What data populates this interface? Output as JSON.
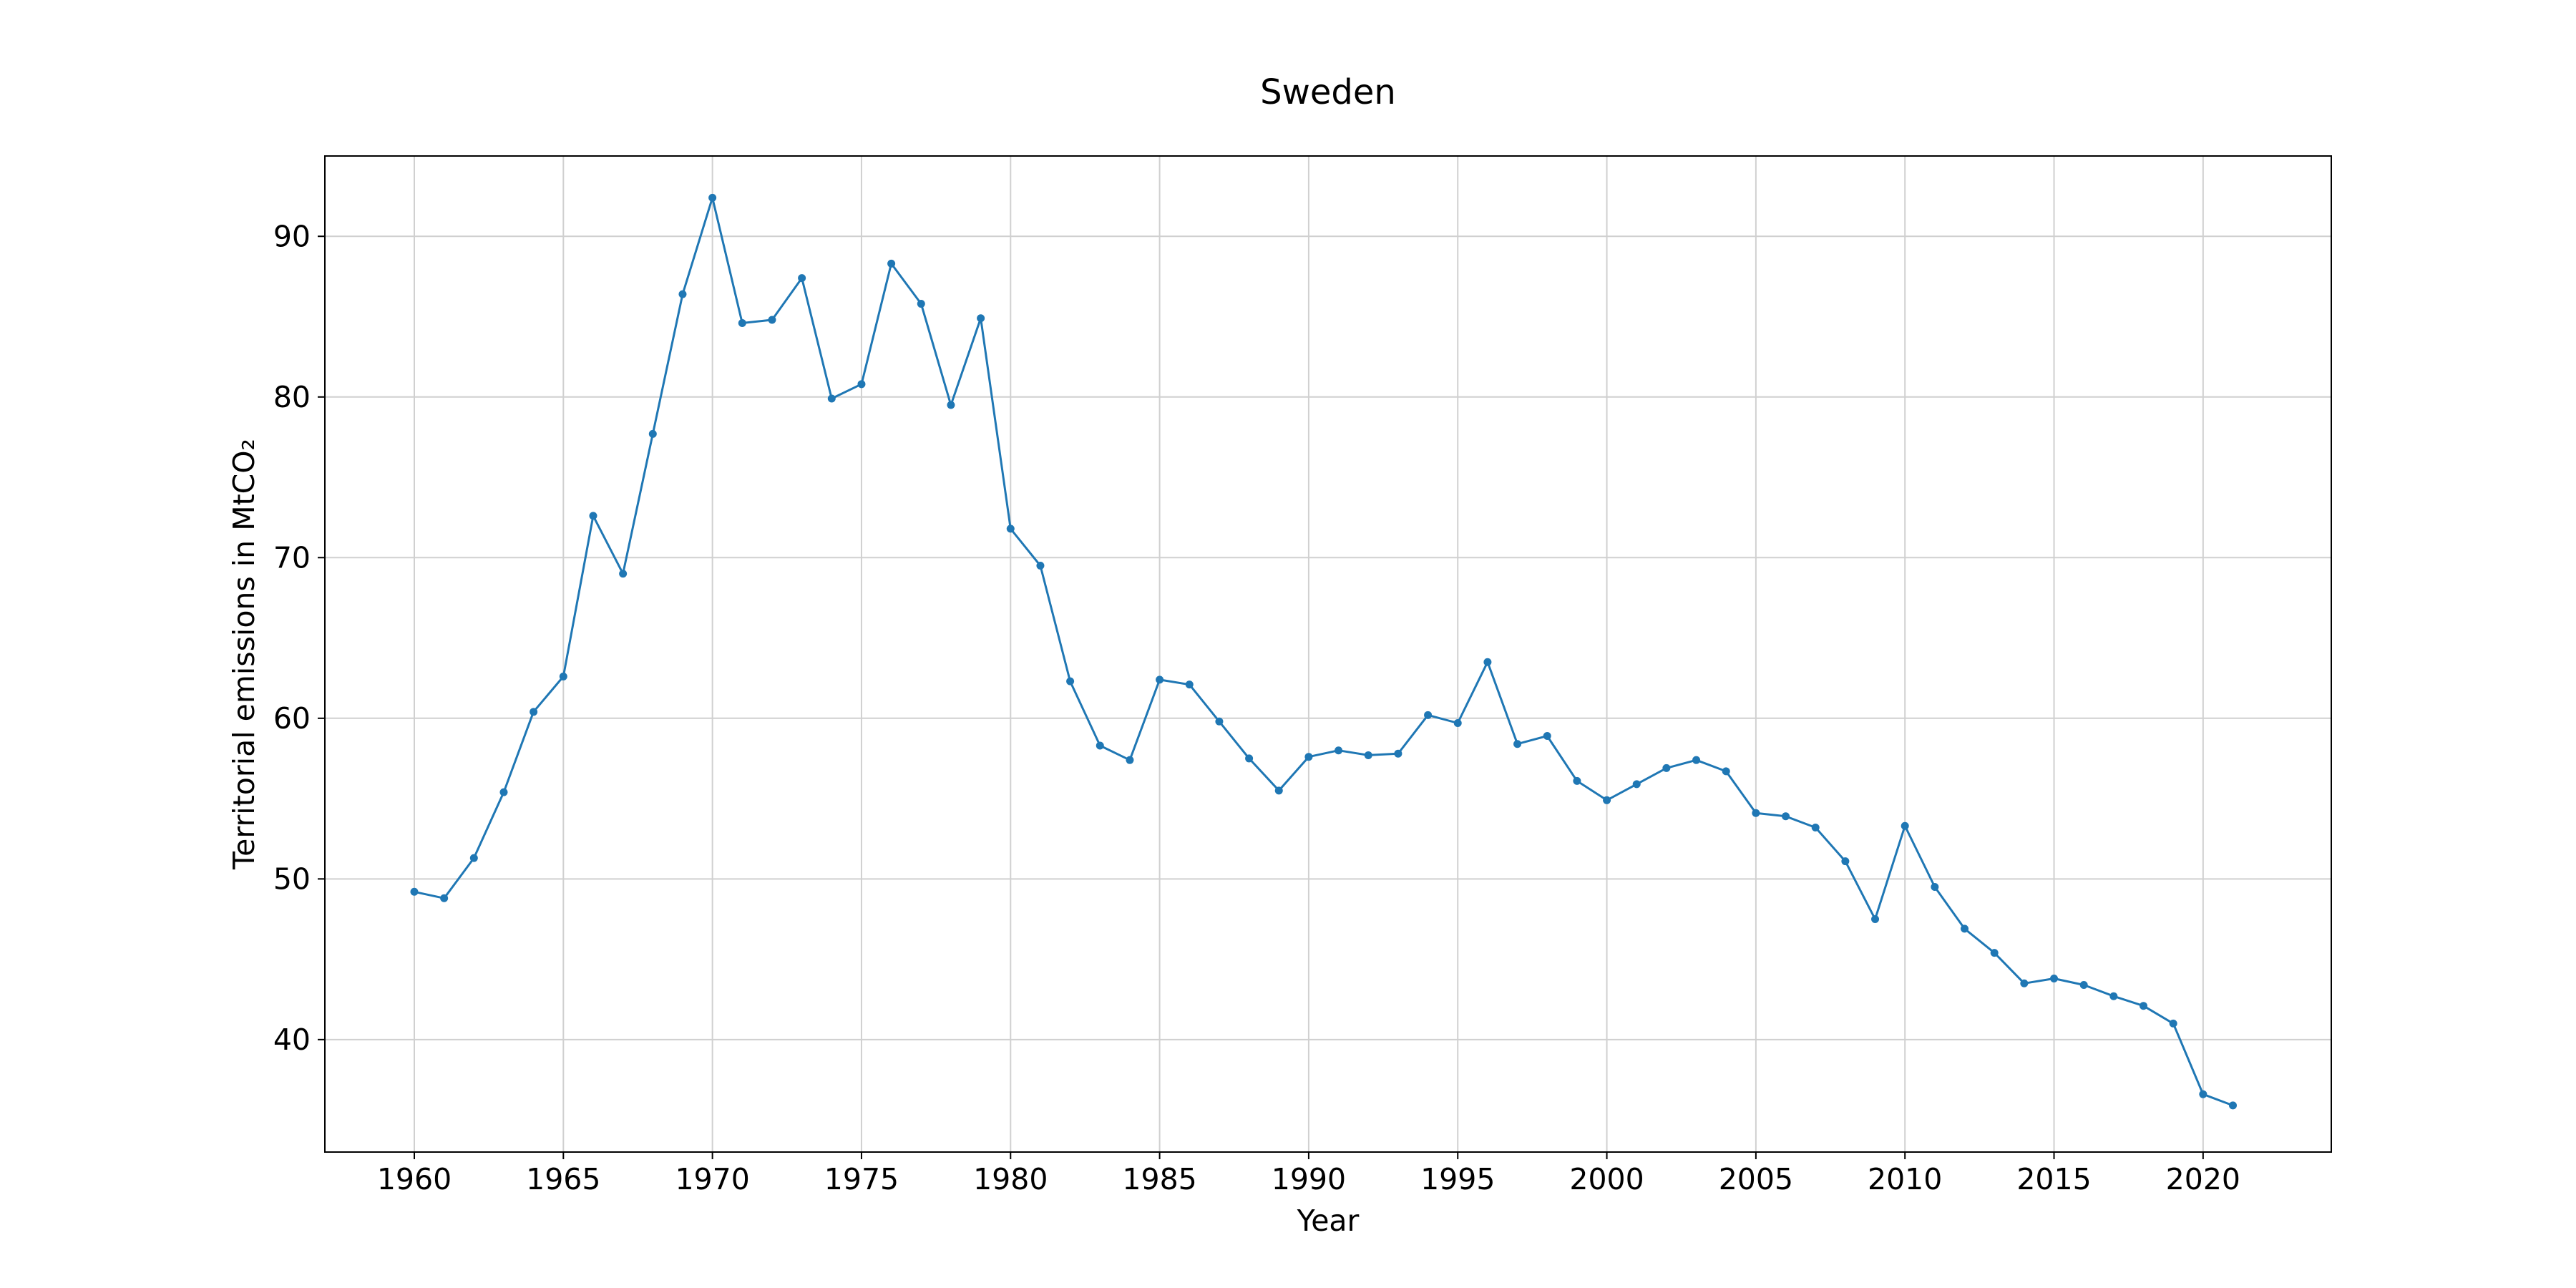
{
  "chart_data": {
    "type": "line",
    "title": "Sweden",
    "xlabel": "Year",
    "ylabel": "Territorial emissions in MtCO₂",
    "xlim": [
      1957,
      2024.3
    ],
    "ylim": [
      33,
      95
    ],
    "xticks": [
      1960,
      1965,
      1970,
      1975,
      1980,
      1985,
      1990,
      1995,
      2000,
      2005,
      2010,
      2015,
      2020
    ],
    "yticks": [
      40,
      50,
      60,
      70,
      80,
      90
    ],
    "grid": true,
    "markers": true,
    "color": "#1f77b4",
    "series": [
      {
        "x": [
          1960,
          1961,
          1962,
          1963,
          1964,
          1965,
          1966,
          1967,
          1968,
          1969,
          1970,
          1971,
          1972,
          1973,
          1974,
          1975,
          1976,
          1977,
          1978,
          1979,
          1980,
          1981,
          1982,
          1983,
          1984,
          1985,
          1986,
          1987,
          1988,
          1989,
          1990,
          1991,
          1992,
          1993,
          1994,
          1995,
          1996,
          1997,
          1998,
          1999,
          2000,
          2001,
          2002,
          2003,
          2004,
          2005,
          2006,
          2007,
          2008,
          2009,
          2010,
          2011,
          2012,
          2013,
          2014,
          2015,
          2016,
          2017,
          2018,
          2019,
          2020,
          2021
        ],
        "values": [
          49.2,
          48.8,
          51.3,
          55.4,
          60.4,
          62.6,
          72.6,
          69.0,
          77.7,
          86.4,
          92.4,
          84.6,
          84.8,
          87.4,
          79.9,
          80.8,
          88.3,
          85.8,
          79.5,
          84.9,
          71.8,
          69.5,
          62.3,
          58.3,
          57.4,
          62.4,
          62.1,
          59.8,
          57.5,
          55.5,
          57.6,
          58.0,
          57.7,
          57.8,
          60.2,
          59.7,
          63.5,
          58.4,
          58.9,
          56.1,
          54.9,
          55.9,
          56.9,
          57.4,
          56.7,
          54.1,
          53.9,
          53.2,
          51.1,
          47.5,
          53.3,
          49.5,
          46.9,
          45.4,
          43.5,
          43.8,
          43.4,
          42.7,
          42.1,
          41.0,
          36.6,
          35.9
        ]
      }
    ]
  }
}
